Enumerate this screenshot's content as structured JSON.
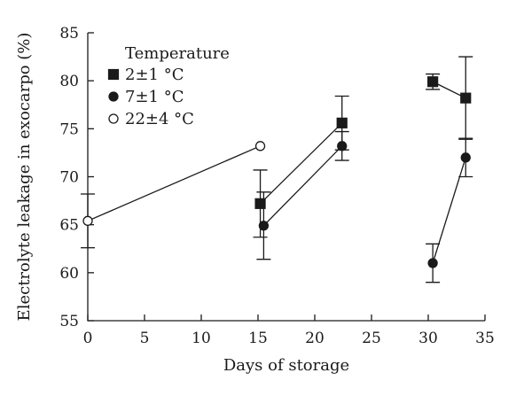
{
  "chart_data": {
    "type": "scatter",
    "xlabel": "Days of storage",
    "ylabel": "Electrolyte leakage in exocarpo (%)",
    "xlim": [
      0,
      35
    ],
    "ylim": [
      55,
      85
    ],
    "xticks": [
      0,
      5,
      10,
      15,
      20,
      25,
      30,
      35
    ],
    "yticks": [
      55,
      60,
      65,
      70,
      75,
      80,
      85
    ],
    "grid": false,
    "legend": {
      "title": "Temperature",
      "position": "top-left"
    },
    "series": [
      {
        "name": "2±1 °C",
        "marker": "square",
        "fill": "#1a1a1a",
        "segments": [
          [
            {
              "x": 15.2,
              "y": 67.2,
              "err": 3.5
            },
            {
              "x": 22.4,
              "y": 75.6,
              "err": 2.8
            }
          ],
          [
            {
              "x": 30.4,
              "y": 79.9,
              "err": 0.8
            },
            {
              "x": 33.3,
              "y": 78.2,
              "err": 4.3
            }
          ]
        ]
      },
      {
        "name": "7±1 °C",
        "marker": "circle",
        "fill": "#1a1a1a",
        "segments": [
          [
            {
              "x": 15.5,
              "y": 64.9,
              "err": 3.5
            },
            {
              "x": 22.4,
              "y": 73.2,
              "err": 1.5
            }
          ],
          [
            {
              "x": 30.4,
              "y": 61.0,
              "err": 2.0
            },
            {
              "x": 33.3,
              "y": 72.0,
              "err": 2.0
            }
          ]
        ]
      },
      {
        "name": "22±4 °C",
        "marker": "circle",
        "fill": "#ffffff",
        "segments": [
          [
            {
              "x": 0.0,
              "y": 65.4,
              "err": 2.8
            },
            {
              "x": 15.2,
              "y": 73.2,
              "err": 0
            }
          ]
        ]
      }
    ]
  }
}
